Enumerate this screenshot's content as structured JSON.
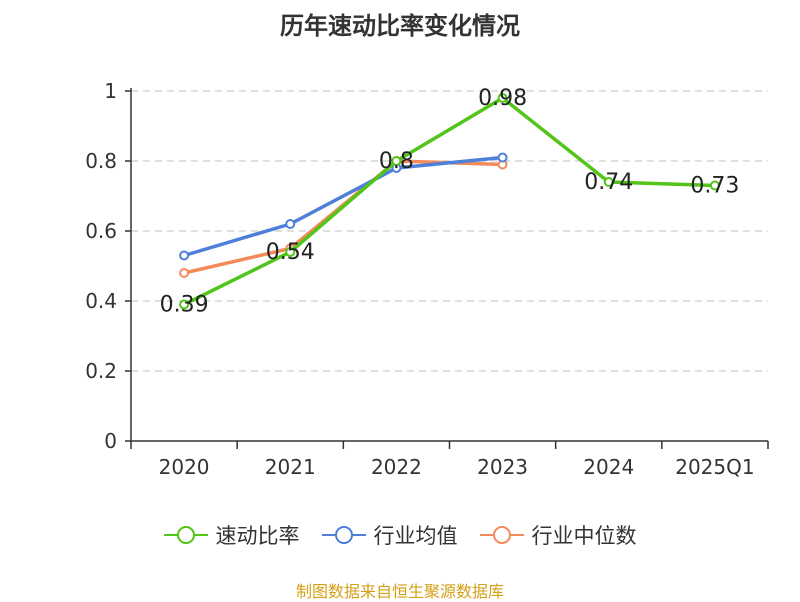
{
  "chart_data": {
    "type": "line",
    "title": "历年速动比率变化情况",
    "categories": [
      "2020",
      "2021",
      "2022",
      "2023",
      "2024",
      "2025Q1"
    ],
    "ylim": [
      0,
      1
    ],
    "yticks": [
      0,
      0.2,
      0.4,
      0.6,
      0.8,
      1
    ],
    "ytick_labels": [
      "0",
      "0.2",
      "0.4",
      "0.6",
      "0.8",
      "1"
    ],
    "grid": true,
    "legend_position": "bottom",
    "series": [
      {
        "name": "速动比率",
        "color": "#52c41a",
        "values": [
          0.39,
          0.54,
          0.8,
          0.98,
          0.74,
          0.73
        ],
        "labels": [
          "0.39",
          "0.54",
          "0.8",
          "0.98",
          "0.74",
          "0.73"
        ]
      },
      {
        "name": "行业均值",
        "color": "#4e7fd9",
        "values": [
          0.53,
          0.62,
          0.78,
          0.81,
          null,
          null
        ]
      },
      {
        "name": "行业中位数",
        "color": "#f48a5a",
        "values": [
          0.48,
          0.55,
          0.8,
          0.79,
          null,
          null
        ]
      }
    ]
  },
  "source": "制图数据来自恒生聚源数据库"
}
